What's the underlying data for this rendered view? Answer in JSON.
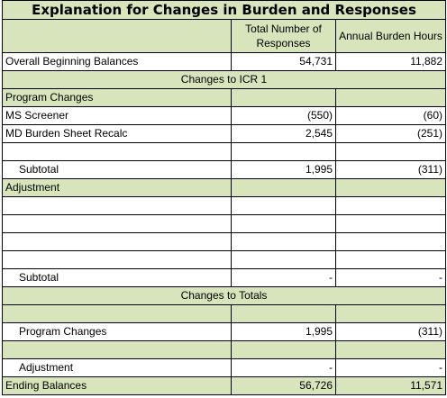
{
  "title": "Explanation for Changes in Burden and Responses",
  "columns": {
    "responses": "Total Number of Responses",
    "hours": "Annual Burden Hours"
  },
  "rows": {
    "beginning": {
      "label": "Overall Beginning Balances",
      "responses": "54,731",
      "hours": "11,882"
    },
    "changes_icr1": "Changes to ICR 1",
    "program_changes_label": "Program Changes",
    "ms_screener": {
      "label": "MS Screener",
      "responses": "(550)",
      "hours": "(60)"
    },
    "md_burden": {
      "label": "MD Burden Sheet Recalc",
      "responses": "2,545",
      "hours": "(251)"
    },
    "subtotal1": {
      "label": "Subtotal",
      "responses": "1,995",
      "hours": "(311)"
    },
    "adjustment_label": "Adjustment",
    "subtotal2": {
      "label": "Subtotal",
      "responses": "-",
      "hours": "-"
    },
    "changes_totals": "Changes to Totals",
    "program_changes_total": {
      "label": "Program Changes",
      "responses": "1,995",
      "hours": "(311)"
    },
    "adjustment_total": {
      "label": "Adjustment",
      "responses": "-",
      "hours": "-"
    },
    "ending": {
      "label": "Ending Balances",
      "responses": "56,726",
      "hours": "11,571"
    }
  },
  "colors": {
    "header_fill": "#d8e4bc",
    "border": "#000000"
  }
}
